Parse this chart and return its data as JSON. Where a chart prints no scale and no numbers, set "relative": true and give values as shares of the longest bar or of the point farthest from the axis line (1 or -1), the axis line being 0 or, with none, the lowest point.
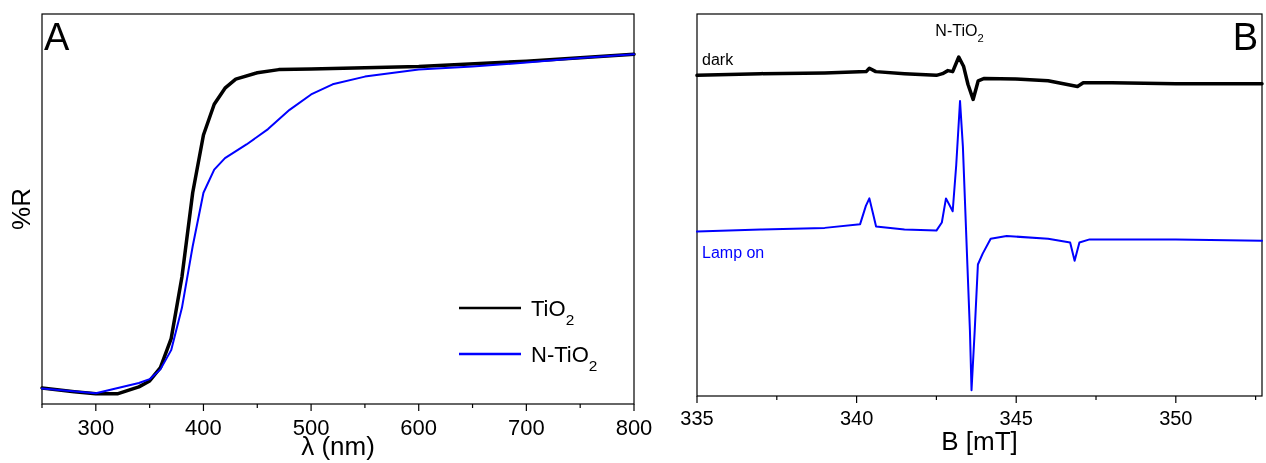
{
  "chart_data": [
    {
      "type": "line",
      "title": "A",
      "xlabel": "λ (nm)",
      "ylabel": "%R",
      "relative": true,
      "xlim": [
        250,
        800
      ],
      "xticks": [
        {
          "value": 250,
          "label": null
        },
        300,
        {
          "value": 350,
          "label": null
        },
        400,
        {
          "value": 450,
          "label": null
        },
        500,
        {
          "value": 550,
          "label": null
        },
        600,
        {
          "value": 650,
          "label": null
        },
        700,
        {
          "value": 750,
          "label": null
        },
        800
      ],
      "legend": "bottom right",
      "tick_labels": "x",
      "series": [
        {
          "name": "TiO$_{2}$",
          "color": "#000000",
          "x": [
            250,
            280,
            300,
            320,
            340,
            350,
            360,
            370,
            380,
            390,
            400,
            410,
            420,
            430,
            450,
            470,
            500,
            600,
            700,
            800
          ],
          "values": [
            0.046,
            0.035,
            0.029,
            0.029,
            0.049,
            0.066,
            0.104,
            0.187,
            0.363,
            0.604,
            0.769,
            0.857,
            0.903,
            0.929,
            0.947,
            0.956,
            0.958,
            0.965,
            0.98,
            1
          ]
        },
        {
          "name": "N-TiO$_{2}$",
          "color": "#0000ff",
          "x": [
            250,
            300,
            340,
            350,
            360,
            370,
            380,
            390,
            400,
            410,
            420,
            440,
            460,
            480,
            500,
            520,
            550,
            600,
            650,
            700,
            750,
            800
          ],
          "values": [
            0.044,
            0.031,
            0.06,
            0.071,
            0.099,
            0.154,
            0.275,
            0.451,
            0.604,
            0.67,
            0.703,
            0.742,
            0.786,
            0.841,
            0.885,
            0.914,
            0.936,
            0.956,
            0.965,
            0.976,
            0.989,
            1
          ]
        }
      ]
    },
    {
      "type": "line",
      "title": "B",
      "xlabel": "B [mT]",
      "relative": true,
      "xlim": [
        335,
        352.7
      ],
      "xticks": [
        335,
        {
          "value": 337.5,
          "label": null
        },
        340,
        {
          "value": 342.5,
          "label": null
        },
        345,
        {
          "value": 347.5,
          "label": null
        },
        350,
        {
          "value": 352.5,
          "label": null
        }
      ],
      "legend": false,
      "tick_labels": "x",
      "annotations": [
        "N-TiO$_{2}$"
      ],
      "series": [
        {
          "name": "dark",
          "color": "#000000",
          "x": [
            335,
            337,
            339,
            340.3,
            340.4,
            340.6,
            341.5,
            342.5,
            342.69,
            342.86,
            343.01,
            343.2,
            343.35,
            343.49,
            343.65,
            343.81,
            344,
            345,
            346,
            346.92,
            347.1,
            348,
            350,
            352.7
          ],
          "values": [
            0.946,
            0.951,
            0.953,
            0.957,
            0.967,
            0.957,
            0.951,
            0.946,
            0.951,
            0.96,
            0.957,
            1,
            0.973,
            0.919,
            0.875,
            0.93,
            0.937,
            0.935,
            0.93,
            0.913,
            0.924,
            0.924,
            0.921,
            0.921
          ]
        },
        {
          "name": "Lamp on",
          "color": "#0000ff",
          "x": [
            335,
            337,
            339,
            340.11,
            340.29,
            340.4,
            340.51,
            340.61,
            341.5,
            342.5,
            342.67,
            342.8,
            343.01,
            343.12,
            343.24,
            343.33,
            343.47,
            343.55,
            343.6,
            343.7,
            343.8,
            343.95,
            344.2,
            344.7,
            346,
            346.69,
            346.83,
            346.98,
            347.3,
            350,
            352.7
          ],
          "values": [
            0.485,
            0.491,
            0.496,
            0.507,
            0.561,
            0.583,
            0.54,
            0.5,
            0.491,
            0.488,
            0.512,
            0.583,
            0.545,
            0.68,
            0.87,
            0.735,
            0.388,
            0.193,
            0.017,
            0.193,
            0.388,
            0.42,
            0.464,
            0.472,
            0.464,
            0.453,
            0.399,
            0.453,
            0.462,
            0.462,
            0.458
          ]
        }
      ]
    }
  ]
}
